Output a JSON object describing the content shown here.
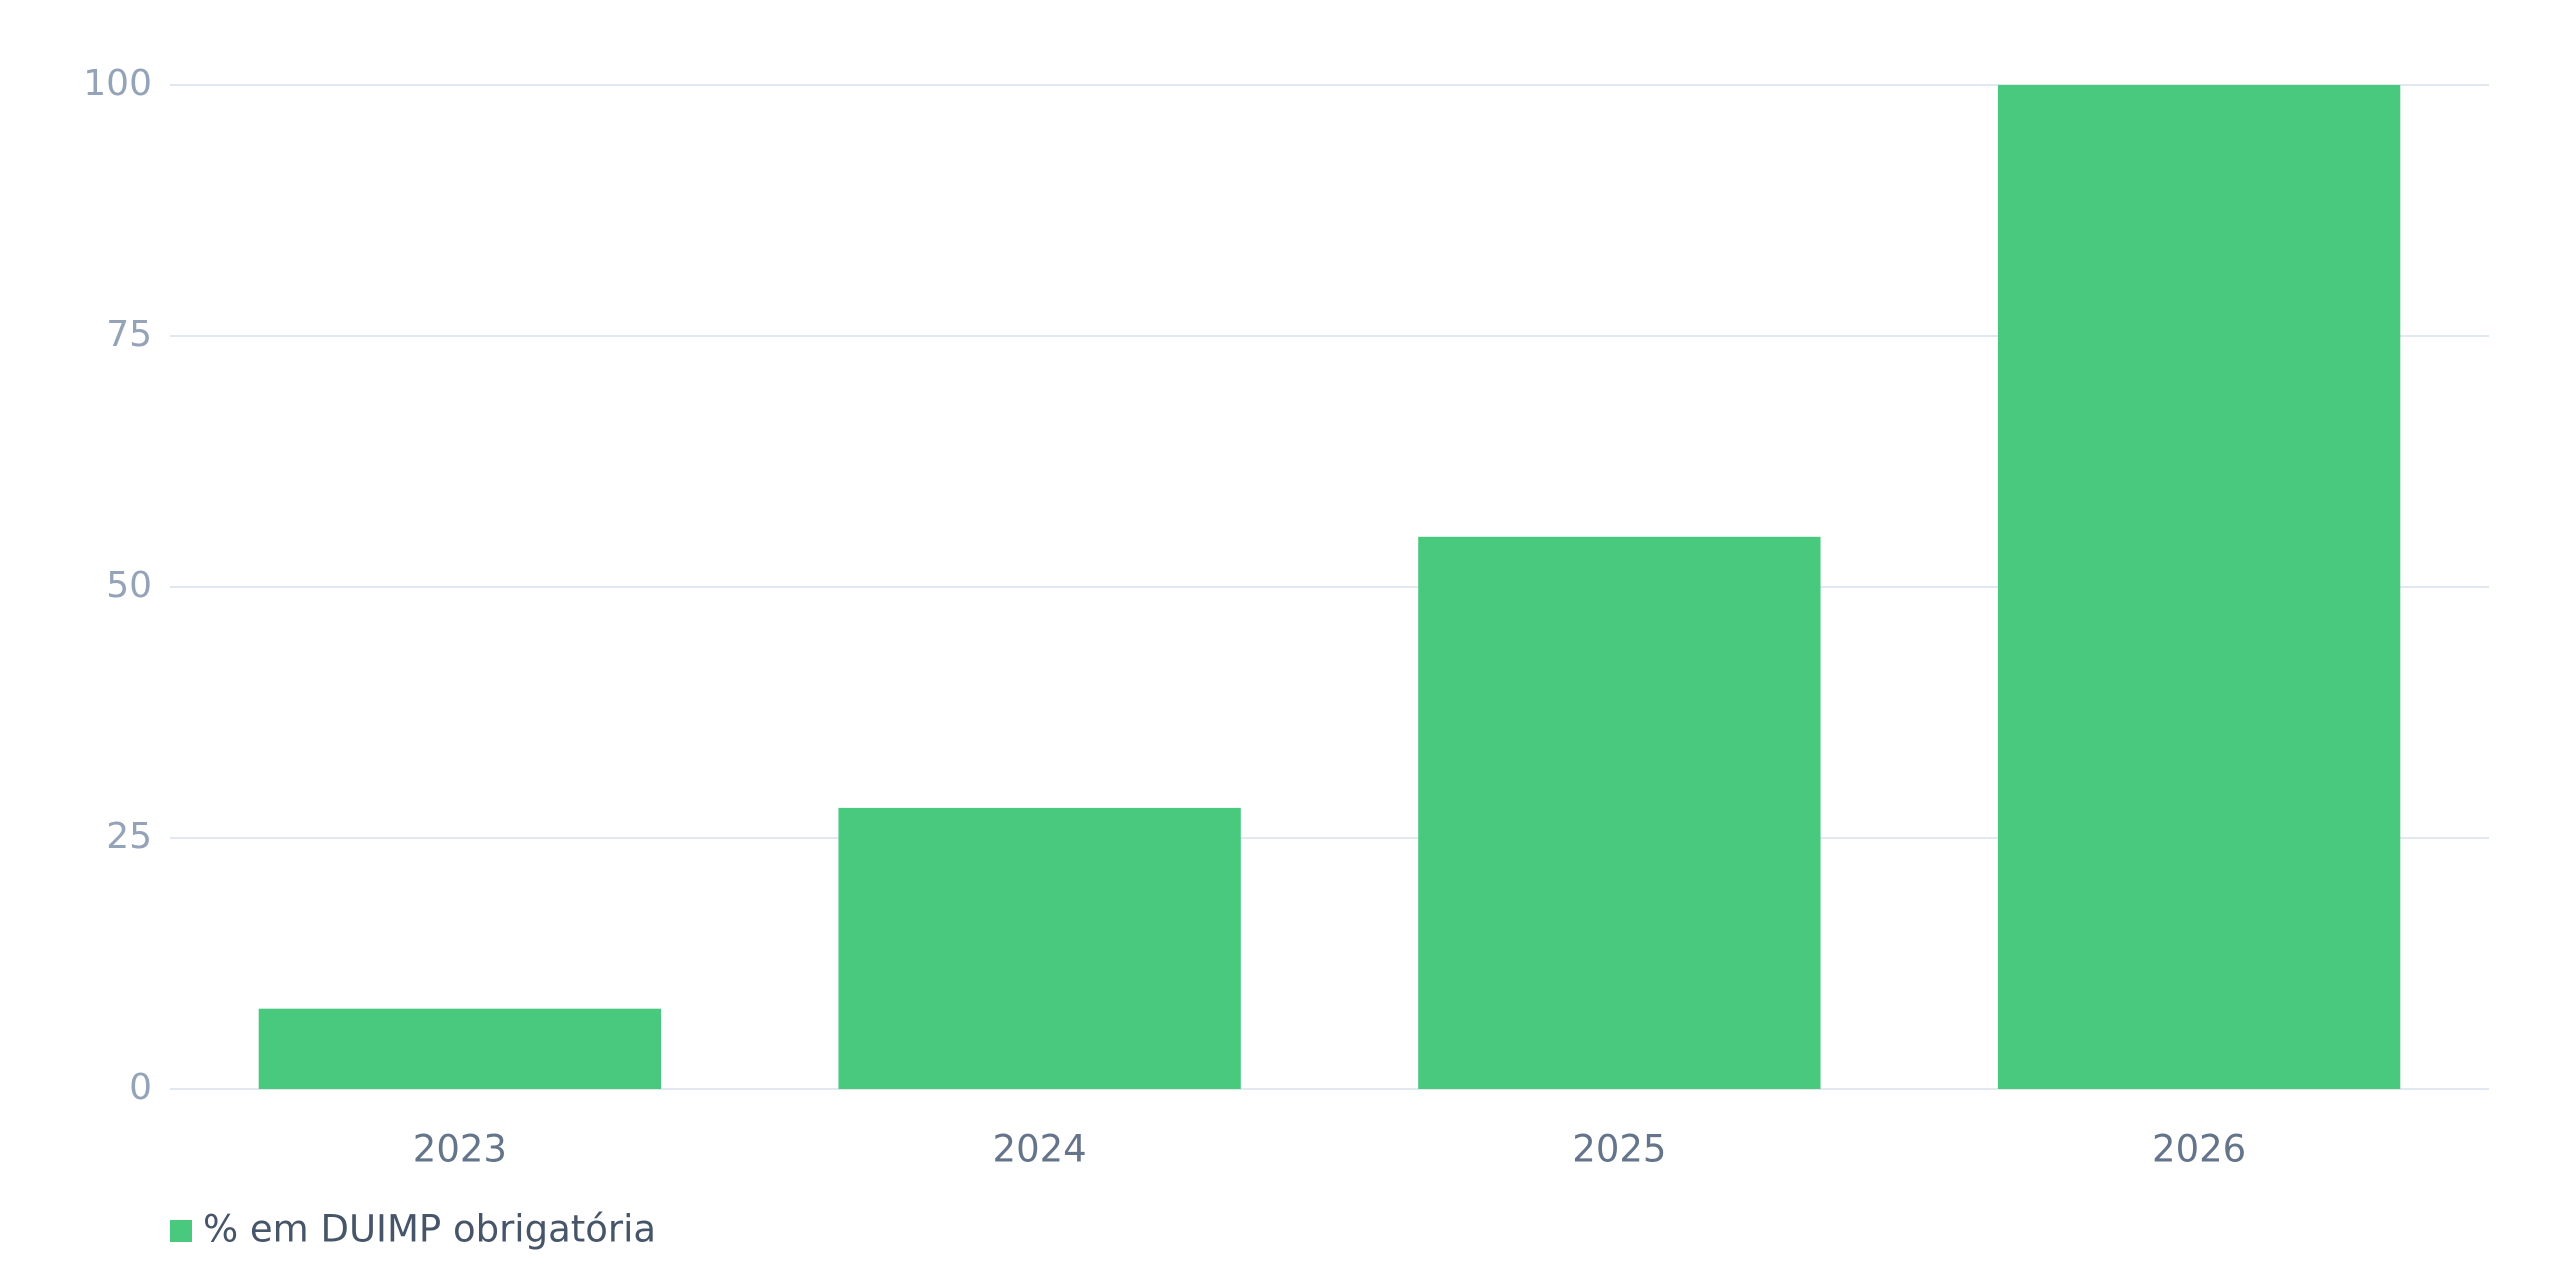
{
  "chart_data": {
    "type": "bar",
    "categories": [
      "2023",
      "2024",
      "2025",
      "2026"
    ],
    "series": [
      {
        "name": "% em DUIMP obrigatória",
        "color": "#48c97e",
        "values": [
          8,
          28,
          55,
          100
        ]
      }
    ],
    "ylim": [
      0,
      100
    ],
    "yticks": [
      0,
      25,
      50,
      75,
      100
    ],
    "grid": true,
    "legend": "bottom-left"
  }
}
